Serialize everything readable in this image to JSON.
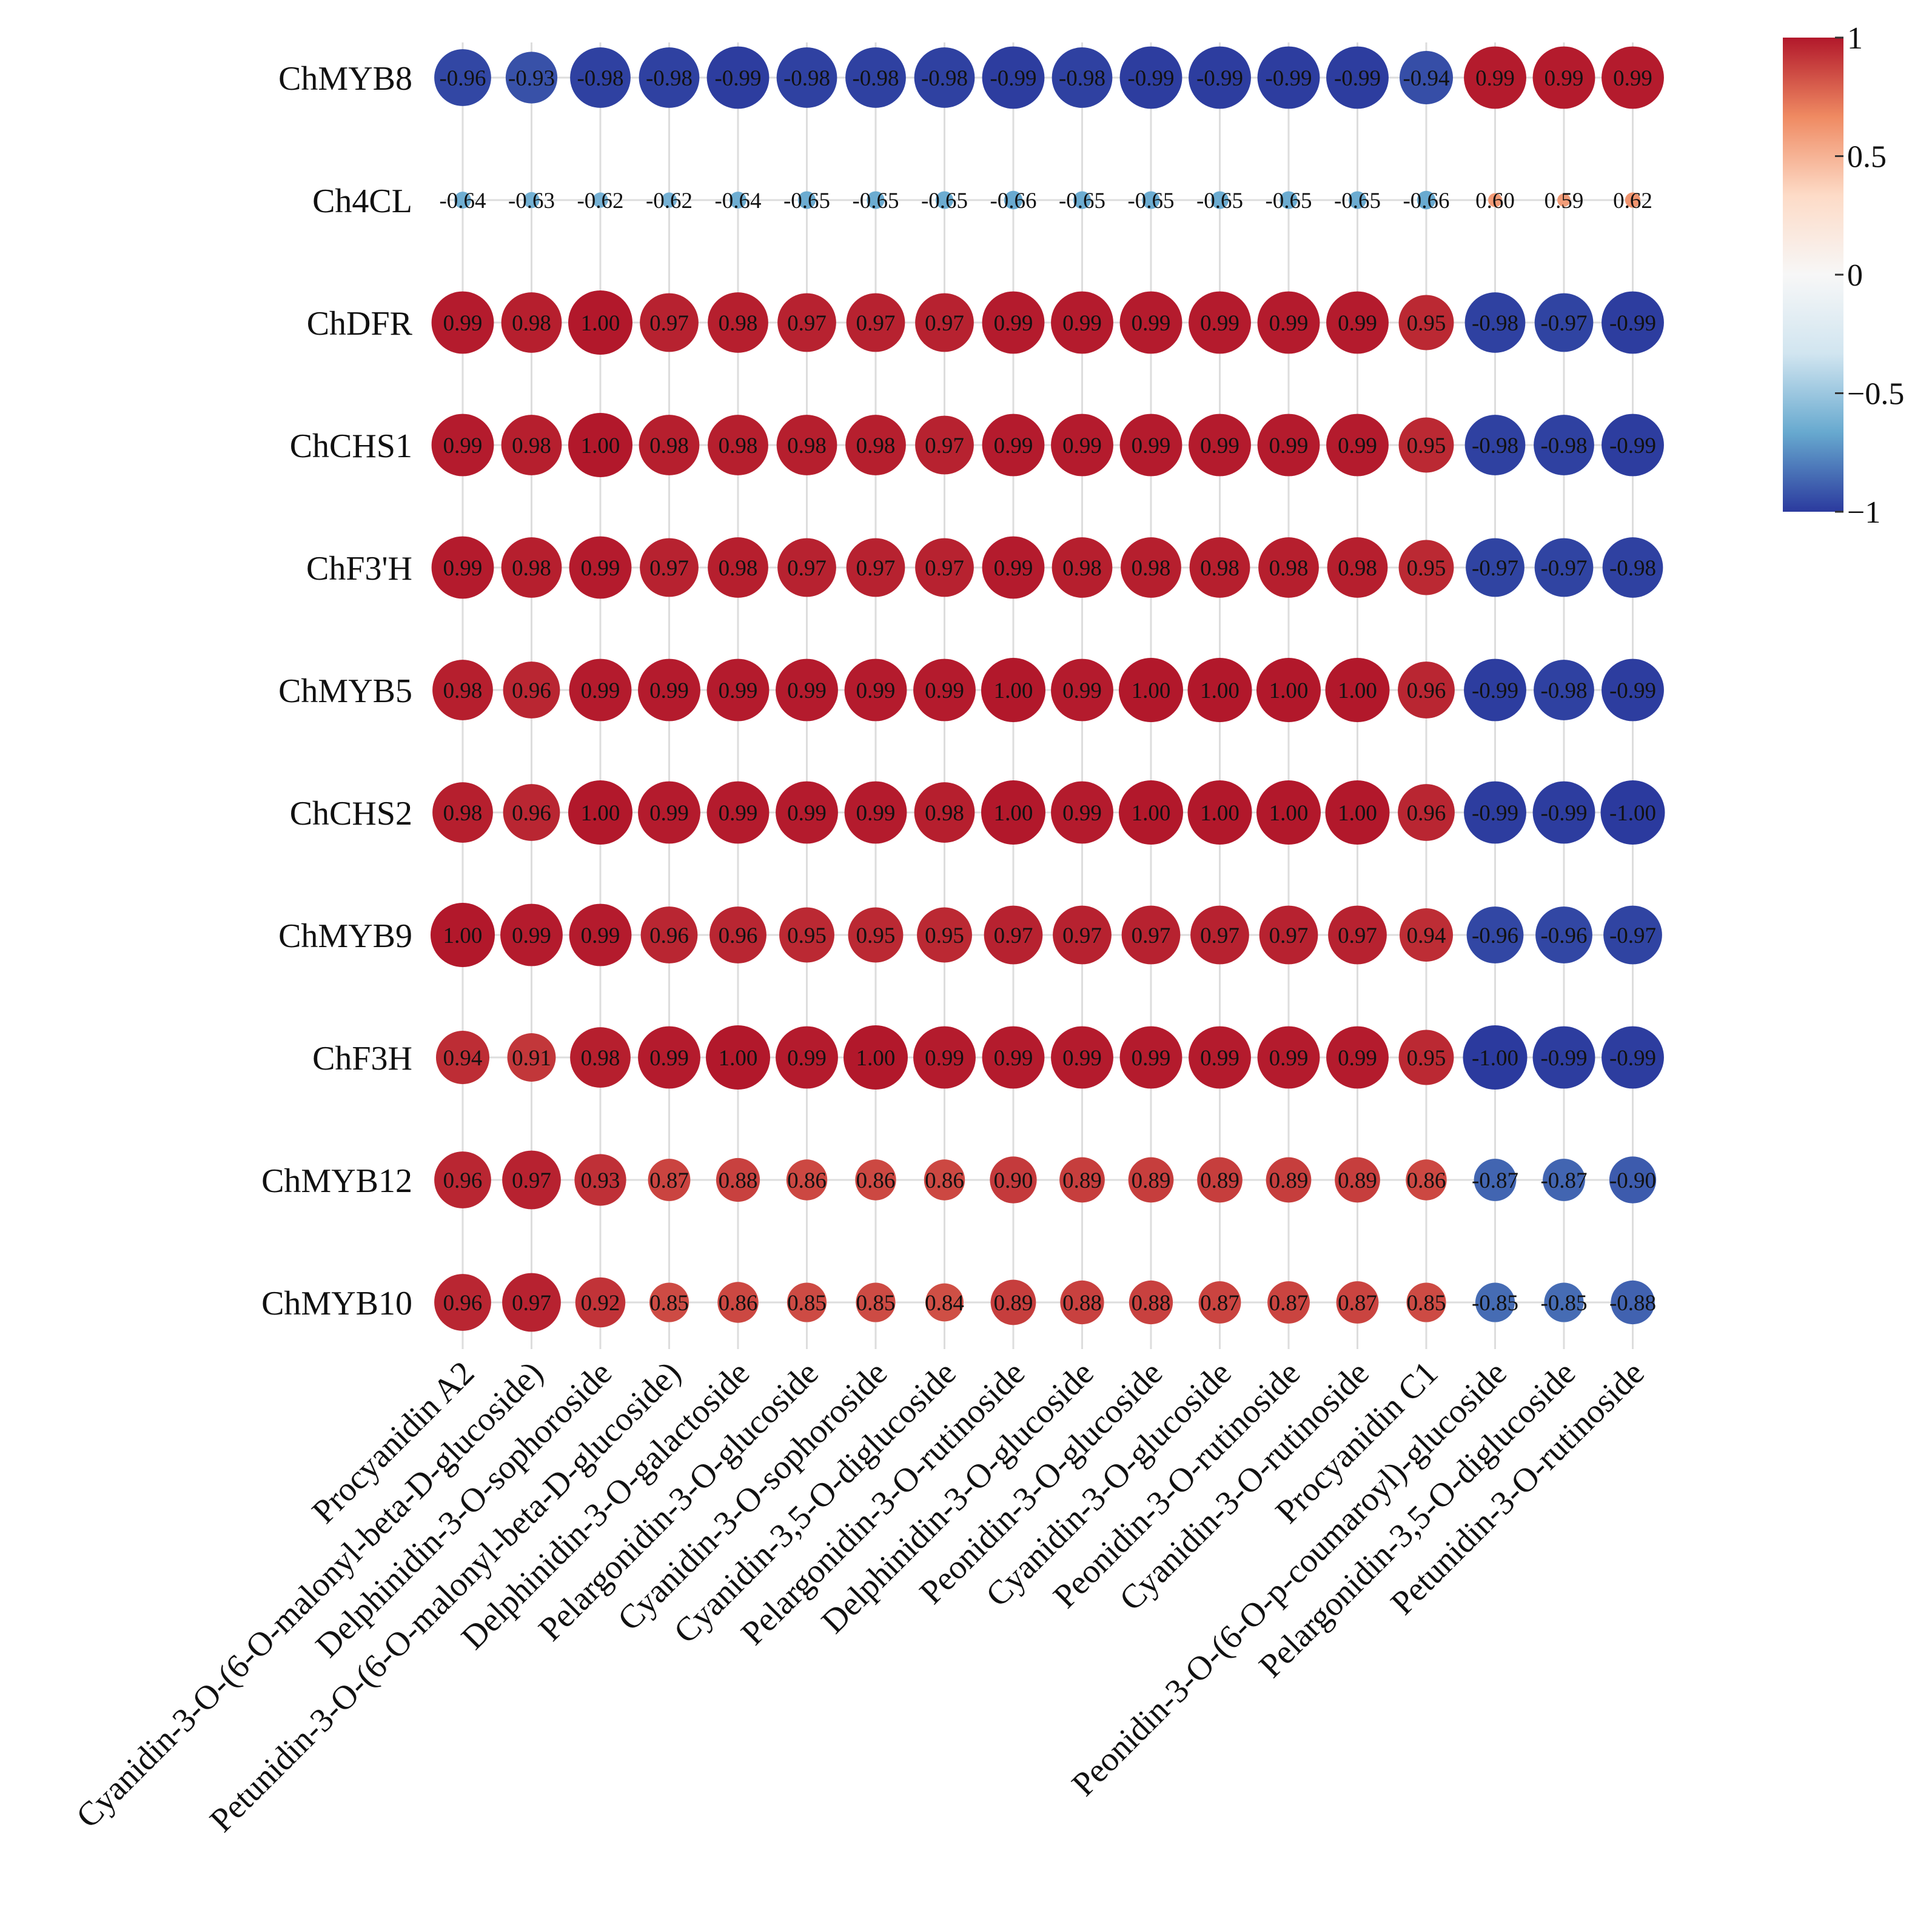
{
  "chart_data": {
    "type": "heatmap",
    "subtype": "correlation-circle-matrix",
    "title": "",
    "rows": [
      "ChMYB8",
      "Ch4CL",
      "ChDFR",
      "ChCHS1",
      "ChF3'H",
      "ChMYB5",
      "ChCHS2",
      "ChMYB9",
      "ChF3H",
      "ChMYB12",
      "ChMYB10"
    ],
    "columns": [
      "Procyanidin A2",
      "Cyanidin-3-O-(6-O-malonyl-beta-D-glucoside)",
      "Delphinidin-3-O-sophoroside",
      "Petunidin-3-O-(6-O-malonyl-beta-D-glucoside)",
      "Delphinidin-3-O-galactoside",
      "Pelargonidin-3-O-glucoside",
      "Cyanidin-3-O-sophoroside",
      "Cyanidin-3,5-O-diglucoside",
      "Pelargonidin-3-O-rutinoside",
      "Delphinidin-3-O-glucoside",
      "Peonidin-3-O-glucoside",
      "Cyanidin-3-O-glucoside",
      "Peonidin-3-O-rutinoside",
      "Cyanidin-3-O-rutinoside",
      "Procyanidin C1",
      "Peonidin-3-O-(6-O-p-coumaroyl)-glucoside",
      "Pelargonidin-3,5-O-diglucoside",
      "Petunidin-3-O-rutinoside"
    ],
    "values": [
      [
        -0.96,
        -0.93,
        -0.98,
        -0.98,
        -0.99,
        -0.98,
        -0.98,
        -0.98,
        -0.99,
        -0.98,
        -0.99,
        -0.99,
        -0.99,
        -0.99,
        -0.94,
        0.99,
        0.99,
        0.99
      ],
      [
        -0.64,
        -0.63,
        -0.62,
        -0.62,
        -0.64,
        -0.65,
        -0.65,
        -0.65,
        -0.66,
        -0.65,
        -0.65,
        -0.65,
        -0.65,
        -0.65,
        -0.66,
        0.6,
        0.59,
        0.62
      ],
      [
        0.99,
        0.98,
        1.0,
        0.97,
        0.98,
        0.97,
        0.97,
        0.97,
        0.99,
        0.99,
        0.99,
        0.99,
        0.99,
        0.99,
        0.95,
        -0.98,
        -0.97,
        -0.99
      ],
      [
        0.99,
        0.98,
        1.0,
        0.98,
        0.98,
        0.98,
        0.98,
        0.97,
        0.99,
        0.99,
        0.99,
        0.99,
        0.99,
        0.99,
        0.95,
        -0.98,
        -0.98,
        -0.99
      ],
      [
        0.99,
        0.98,
        0.99,
        0.97,
        0.98,
        0.97,
        0.97,
        0.97,
        0.99,
        0.98,
        0.98,
        0.98,
        0.98,
        0.98,
        0.95,
        -0.97,
        -0.97,
        -0.98
      ],
      [
        0.98,
        0.96,
        0.99,
        0.99,
        0.99,
        0.99,
        0.99,
        0.99,
        1.0,
        0.99,
        1.0,
        1.0,
        1.0,
        1.0,
        0.96,
        -0.99,
        -0.98,
        -0.99
      ],
      [
        0.98,
        0.96,
        1.0,
        0.99,
        0.99,
        0.99,
        0.99,
        0.98,
        1.0,
        0.99,
        1.0,
        1.0,
        1.0,
        1.0,
        0.96,
        -0.99,
        -0.99,
        -1.0
      ],
      [
        1.0,
        0.99,
        0.99,
        0.96,
        0.96,
        0.95,
        0.95,
        0.95,
        0.97,
        0.97,
        0.97,
        0.97,
        0.97,
        0.97,
        0.94,
        -0.96,
        -0.96,
        -0.97
      ],
      [
        0.94,
        0.91,
        0.98,
        0.99,
        1.0,
        0.99,
        1.0,
        0.99,
        0.99,
        0.99,
        0.99,
        0.99,
        0.99,
        0.99,
        0.95,
        -1.0,
        -0.99,
        -0.99
      ],
      [
        0.96,
        0.97,
        0.93,
        0.87,
        0.88,
        0.86,
        0.86,
        0.86,
        0.9,
        0.89,
        0.89,
        0.89,
        0.89,
        0.89,
        0.86,
        -0.87,
        -0.87,
        -0.9
      ],
      [
        0.96,
        0.97,
        0.92,
        0.85,
        0.86,
        0.85,
        0.85,
        0.84,
        0.89,
        0.88,
        0.88,
        0.87,
        0.87,
        0.87,
        0.85,
        -0.85,
        -0.85,
        -0.88
      ]
    ],
    "value_range": [
      -1,
      1
    ],
    "colorbar": {
      "ticks": [
        1,
        0.5,
        0,
        -0.5,
        -1
      ],
      "tick_labels": [
        "1",
        "0.5",
        "0",
        "−0.5",
        "−1"
      ],
      "colors": [
        "#b2182b",
        "#ef8a62",
        "#fddbc7",
        "#f7f7f7",
        "#d1e5f0",
        "#67a9cf",
        "#2b3a9e"
      ],
      "placement": "top-right"
    },
    "size_encodes": "absolute value of correlation",
    "grid": true
  }
}
